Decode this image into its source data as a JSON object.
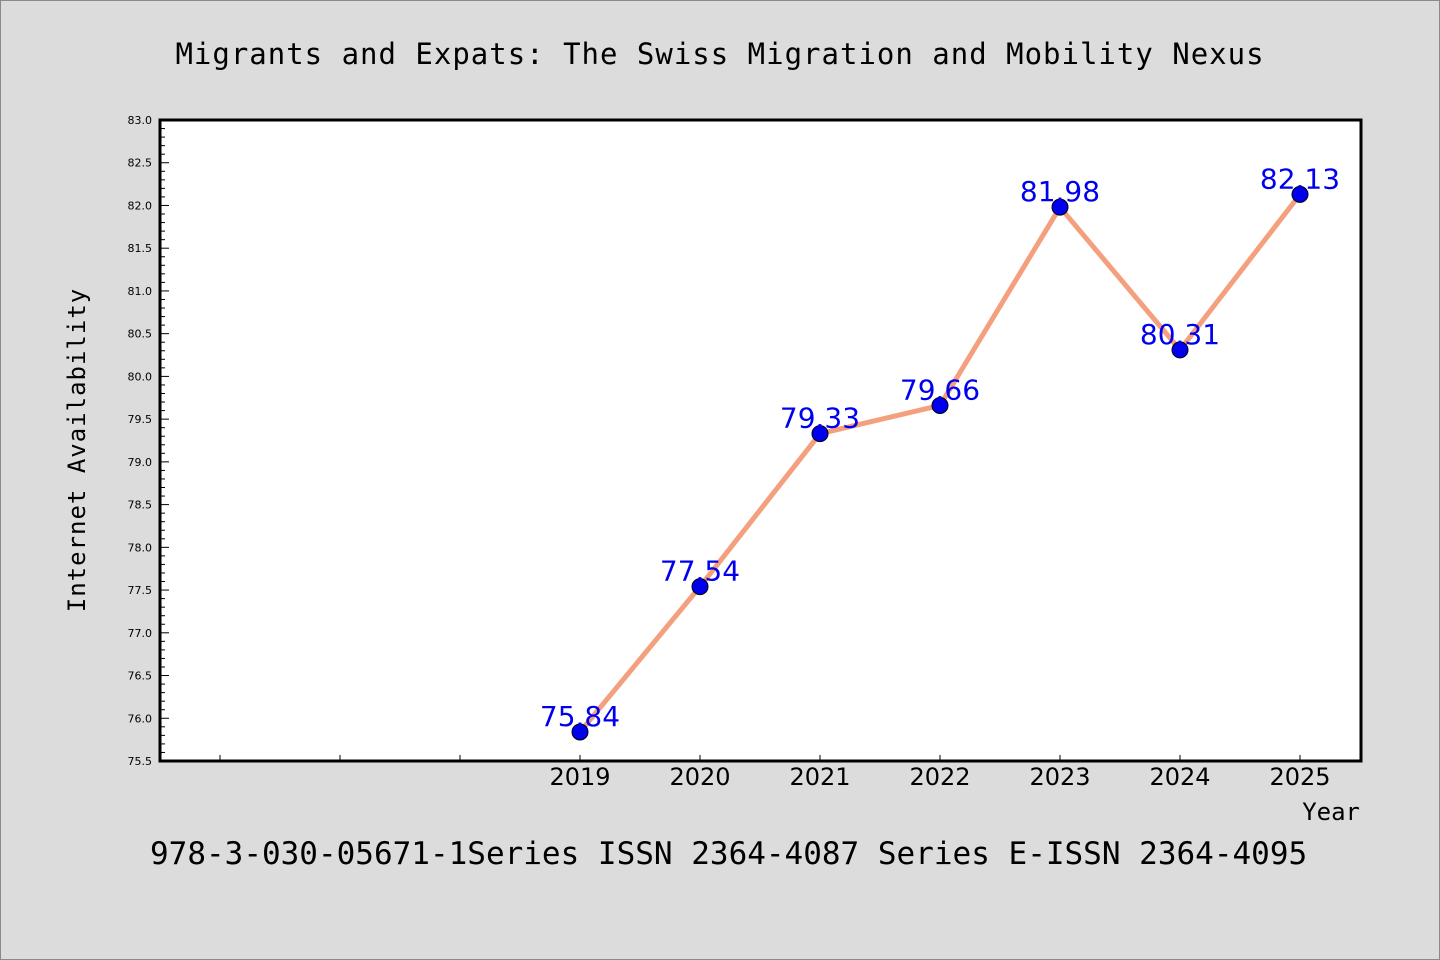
{
  "chart_data": {
    "type": "line",
    "title": "Migrants and Expats: The Swiss Migration and Mobility Nexus",
    "xlabel": "Year",
    "ylabel": "Internet Availability",
    "x": [
      "2019",
      "2020",
      "2021",
      "2022",
      "2023",
      "2024",
      "2025"
    ],
    "values": [
      75.84,
      77.54,
      79.33,
      79.66,
      81.98,
      80.31,
      82.13
    ],
    "data_labels": [
      "75.84",
      "77.54",
      "79.33",
      "79.66",
      "81.98",
      "80.31",
      "82.13"
    ],
    "ylim": [
      75.5,
      83.0
    ],
    "yticks": [
      "75.5",
      "76.0",
      "76.5",
      "77.0",
      "77.5",
      "78.0",
      "78.5",
      "79.0",
      "79.5",
      "80.0",
      "80.5",
      "81.0",
      "81.5",
      "82.0",
      "82.5",
      "83.0"
    ],
    "grid": false,
    "line_color": "#f4a07e",
    "marker_color": "#0000ee",
    "label_color": "#0000ee"
  },
  "footer": "978-3-030-05671-1Series ISSN 2364-4087 Series E-ISSN 2364-4095"
}
